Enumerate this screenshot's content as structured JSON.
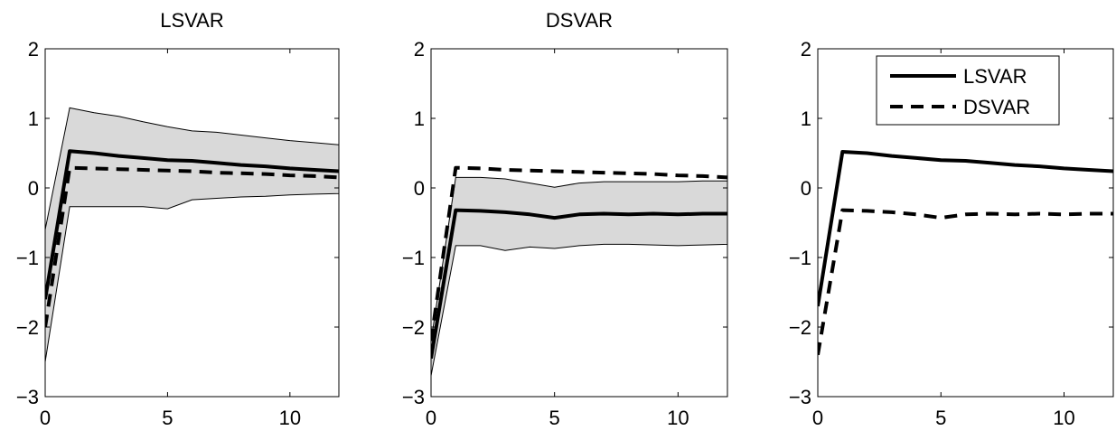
{
  "figure": {
    "panel_count": 3
  },
  "chart_data": [
    {
      "type": "line",
      "title": "LSVAR",
      "xlim": [
        0,
        12
      ],
      "ylim": [
        -3,
        2
      ],
      "xticks": [
        0,
        5,
        10
      ],
      "yticks": [
        -3,
        -2,
        -1,
        0,
        1,
        2
      ],
      "xtick_labels": [
        "0",
        "5",
        "10"
      ],
      "ytick_labels": [
        "−3",
        "−2",
        "−1",
        "0",
        "1",
        "2"
      ],
      "grid": false,
      "band": {
        "x": [
          0,
          1,
          2,
          3,
          4,
          5,
          6,
          7,
          8,
          9,
          10,
          11,
          12
        ],
        "upper": [
          -0.6,
          1.15,
          1.08,
          1.03,
          0.95,
          0.88,
          0.82,
          0.8,
          0.76,
          0.72,
          0.68,
          0.65,
          0.62
        ],
        "lower": [
          -2.5,
          -0.27,
          -0.27,
          -0.27,
          -0.27,
          -0.3,
          -0.17,
          -0.15,
          -0.13,
          -0.12,
          -0.1,
          -0.09,
          -0.08
        ],
        "color": "#d9d9d9"
      },
      "series": [
        {
          "style": "solid",
          "x": [
            0,
            1,
            2,
            3,
            4,
            5,
            6,
            7,
            8,
            9,
            10,
            11,
            12
          ],
          "values": [
            -1.6,
            0.53,
            0.5,
            0.46,
            0.43,
            0.4,
            0.39,
            0.36,
            0.33,
            0.31,
            0.28,
            0.26,
            0.24
          ]
        },
        {
          "style": "dashed",
          "x": [
            0,
            1,
            2,
            3,
            4,
            5,
            6,
            7,
            8,
            9,
            10,
            11,
            12
          ],
          "values": [
            -2.0,
            0.29,
            0.28,
            0.27,
            0.26,
            0.25,
            0.24,
            0.22,
            0.21,
            0.2,
            0.18,
            0.17,
            0.15
          ]
        }
      ]
    },
    {
      "type": "line",
      "title": "DSVAR",
      "xlim": [
        0,
        12
      ],
      "ylim": [
        -3,
        2
      ],
      "xticks": [
        0,
        5,
        10
      ],
      "yticks": [
        -3,
        -2,
        -1,
        0,
        1,
        2
      ],
      "xtick_labels": [
        "0",
        "5",
        "10"
      ],
      "ytick_labels": [
        "−3",
        "−2",
        "−1",
        "0",
        "1",
        "2"
      ],
      "grid": false,
      "band": {
        "x": [
          0,
          1,
          2,
          3,
          4,
          5,
          6,
          7,
          8,
          9,
          10,
          11,
          12
        ],
        "upper": [
          -2.2,
          0.15,
          0.15,
          0.13,
          0.07,
          0.01,
          0.07,
          0.09,
          0.09,
          0.09,
          0.09,
          0.1,
          0.1
        ],
        "lower": [
          -2.7,
          -0.83,
          -0.83,
          -0.9,
          -0.85,
          -0.87,
          -0.83,
          -0.81,
          -0.81,
          -0.82,
          -0.83,
          -0.82,
          -0.81
        ],
        "color": "#d9d9d9"
      },
      "series": [
        {
          "style": "solid",
          "x": [
            0,
            1,
            2,
            3,
            4,
            5,
            6,
            7,
            8,
            9,
            10,
            11,
            12
          ],
          "values": [
            -2.45,
            -0.32,
            -0.33,
            -0.35,
            -0.38,
            -0.43,
            -0.38,
            -0.37,
            -0.38,
            -0.37,
            -0.38,
            -0.37,
            -0.37
          ]
        },
        {
          "style": "dashed",
          "x": [
            0,
            1,
            2,
            3,
            4,
            5,
            6,
            7,
            8,
            9,
            10,
            11,
            12
          ],
          "values": [
            -2.2,
            0.29,
            0.28,
            0.26,
            0.25,
            0.24,
            0.23,
            0.22,
            0.21,
            0.2,
            0.18,
            0.17,
            0.15
          ]
        }
      ]
    },
    {
      "type": "line",
      "title": "",
      "xlim": [
        0,
        12
      ],
      "ylim": [
        -3,
        2
      ],
      "xticks": [
        0,
        5,
        10
      ],
      "yticks": [
        -3,
        -2,
        -1,
        0,
        1,
        2
      ],
      "xtick_labels": [
        "0",
        "5",
        "10"
      ],
      "ytick_labels": [
        "−3",
        "−2",
        "−1",
        "0",
        "1",
        "2"
      ],
      "grid": false,
      "legend": {
        "position": "top-right",
        "entries": [
          "LSVAR",
          "DSVAR"
        ]
      },
      "series": [
        {
          "name": "LSVAR",
          "style": "solid",
          "x": [
            0,
            1,
            2,
            3,
            4,
            5,
            6,
            7,
            8,
            9,
            10,
            11,
            12
          ],
          "values": [
            -1.7,
            0.52,
            0.5,
            0.46,
            0.43,
            0.4,
            0.39,
            0.36,
            0.33,
            0.31,
            0.28,
            0.26,
            0.24
          ]
        },
        {
          "name": "DSVAR",
          "style": "dashed",
          "x": [
            0,
            1,
            2,
            3,
            4,
            5,
            6,
            7,
            8,
            9,
            10,
            11,
            12
          ],
          "values": [
            -2.4,
            -0.32,
            -0.33,
            -0.35,
            -0.38,
            -0.43,
            -0.38,
            -0.37,
            -0.38,
            -0.37,
            -0.38,
            -0.37,
            -0.37
          ]
        }
      ]
    }
  ]
}
